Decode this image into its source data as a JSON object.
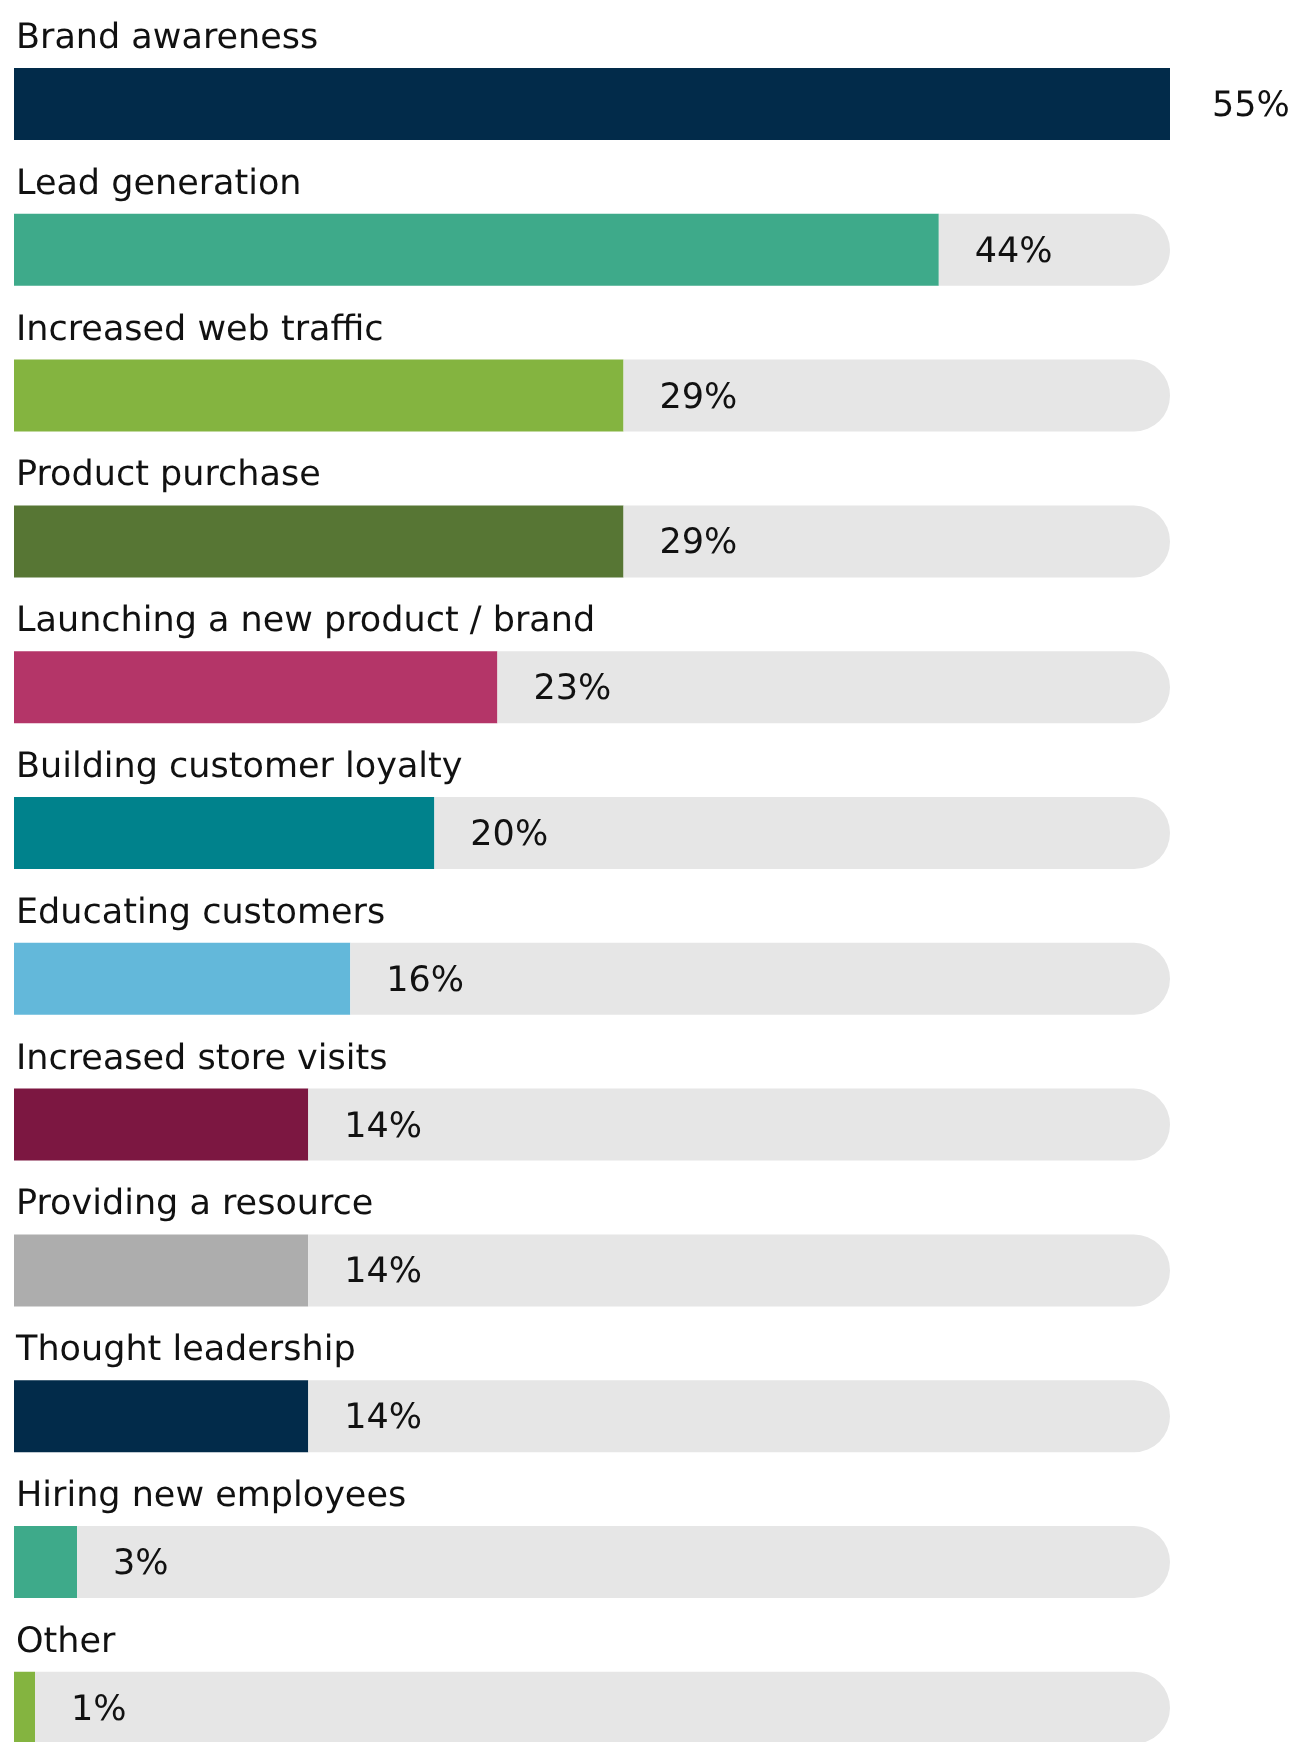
{
  "chart_data": {
    "type": "bar",
    "orientation": "horizontal",
    "stacked": true,
    "categories": [
      "Brand awareness",
      "Lead generation",
      "Increased web traffic",
      "Product purchase",
      "Launching a new product / brand",
      "Building customer loyalty",
      "Educating customers",
      "Increased store visits",
      "Providing a resource",
      "Thought leadership",
      "Hiring new employees",
      "Other"
    ],
    "series": [
      {
        "values": [
          55,
          44,
          29,
          29,
          23,
          20,
          16,
          14,
          14,
          14,
          3,
          1
        ],
        "value_labels": [
          "55%",
          "44%",
          "29%",
          "29%",
          "23%",
          "20%",
          "16%",
          "14%",
          "14%",
          "14%",
          "3%",
          "1%"
        ],
        "colors": [
          "#022b4a",
          "#3eaa8a",
          "#84b440",
          "#577634",
          "#b43568",
          "#00828c",
          "#63b8da",
          "#7c1741",
          "#adadad",
          "#022b4a",
          "#3eaa8a",
          "#84b440"
        ]
      },
      {
        "color": "#e6e6e6",
        "values": [
          0,
          11,
          26,
          26,
          32,
          35,
          39,
          41,
          41,
          41,
          52,
          54
        ]
      }
    ]
  }
}
